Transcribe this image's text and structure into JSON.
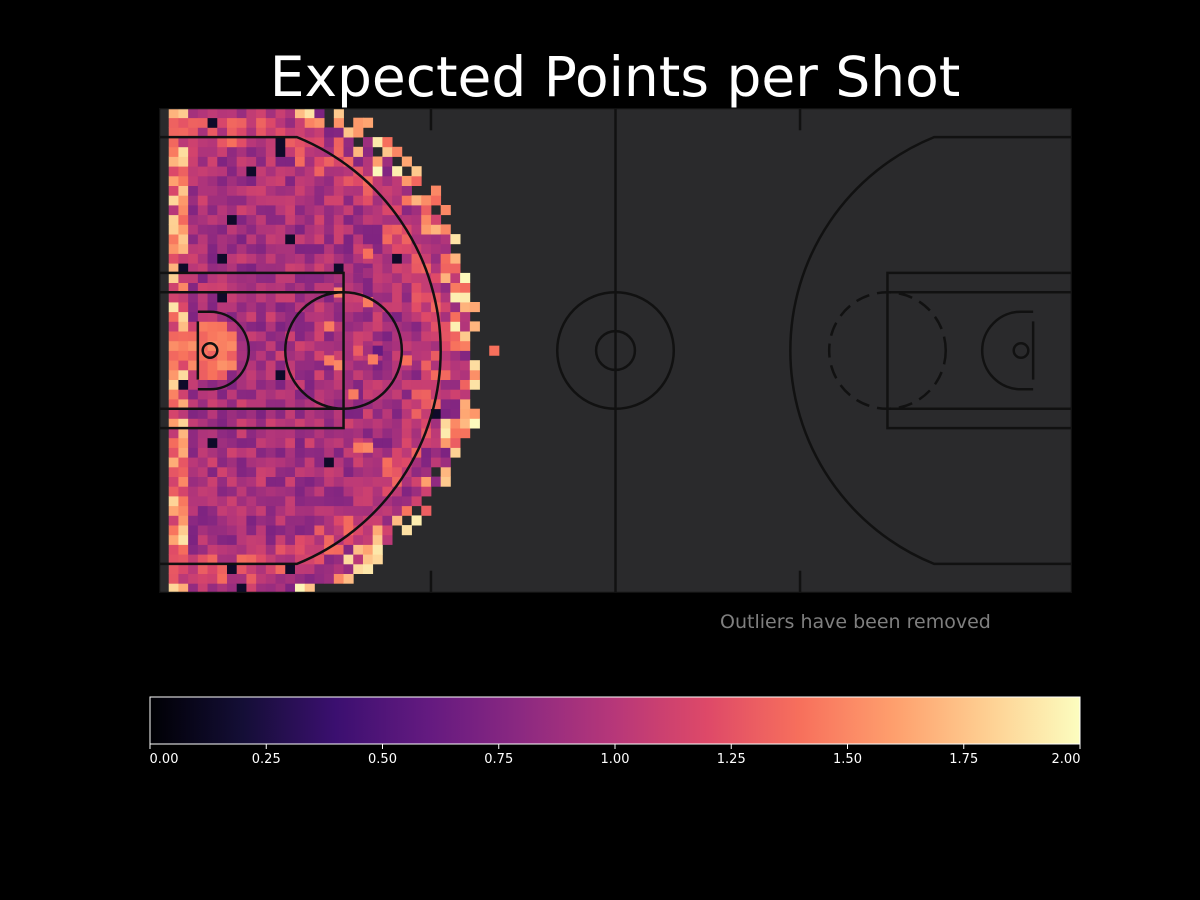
{
  "title": "Expected Points per Shot",
  "note": "Outliers have been removed",
  "colors": {
    "background": "#000000",
    "court": "#2a2a2c",
    "court_lines": "#111111",
    "text": "#ffffff",
    "note": "#7f7f7f"
  },
  "chart_data": {
    "type": "heatmap",
    "title": "Expected Points per Shot",
    "description_of_content": "shot-location heatmap on a half court (left basket), binned cells colored by expected points per shot",
    "colormap": "magma",
    "vmin": 0.0,
    "vmax": 2.0,
    "colorbar_ticks": [
      "0.00",
      "0.25",
      "0.50",
      "0.75",
      "1.00",
      "1.25",
      "1.50",
      "1.75",
      "2.00"
    ],
    "colorbar_tick_values": [
      0,
      0.25,
      0.5,
      0.75,
      1.0,
      1.25,
      1.5,
      1.75,
      2.0
    ],
    "annotation": "Outliers have been removed",
    "typical_value_range": [
      0.75,
      1.1
    ],
    "rim_area_value": 1.4,
    "perimeter_high_values": [
      1.5,
      2.0
    ],
    "outlier_like_cells": [
      {
        "x": 21.5,
        "y": 10.0,
        "v": 1.4
      },
      {
        "x": 20.5,
        "y": 8.5,
        "v": 0.8
      },
      {
        "x": 21.5,
        "y": 8.0,
        "v": 0.9
      },
      {
        "x": 18.5,
        "y": 6.0,
        "v": 1.5
      },
      {
        "x": 21.5,
        "y": 5.0,
        "v": 1.45
      },
      {
        "x": 17.5,
        "y": 2.5,
        "v": 1.45
      },
      {
        "x": 17.5,
        "y": -1.0,
        "v": 1.45
      },
      {
        "x": 18.5,
        "y": -1.5,
        "v": 1.5
      },
      {
        "x": 20.5,
        "y": 0.0,
        "v": 1.3
      },
      {
        "x": 21.5,
        "y": 0.0,
        "v": 0.9
      },
      {
        "x": 22.5,
        "y": 0.0,
        "v": 0.6
      },
      {
        "x": 22.0,
        "y": -0.9,
        "v": 1.45
      },
      {
        "x": 25.5,
        "y": -1.0,
        "v": 1.4
      },
      {
        "x": 34.5,
        "y": 0.0,
        "v": 1.4
      },
      {
        "x": 20.0,
        "y": -4.5,
        "v": 1.45
      },
      {
        "x": 20.5,
        "y": -10.0,
        "v": 1.45
      },
      {
        "x": 21.5,
        "y": -10.0,
        "v": 1.5
      }
    ]
  }
}
